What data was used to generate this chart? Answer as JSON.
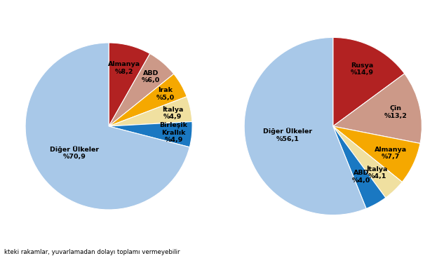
{
  "left_pie": {
    "values": [
      8.2,
      6.0,
      5.0,
      4.9,
      4.9,
      70.9
    ],
    "colors": [
      "#b22222",
      "#cc9988",
      "#f5a800",
      "#f0e0a0",
      "#1a78c2",
      "#a8c8e8"
    ],
    "label_texts": [
      "Almanya\n%8,2",
      "ABD\n%6,0",
      "Irak\n%5,0",
      "İtalya\n%4,9",
      "Birleşik\nKrallık\n%4,9",
      "Diğer Ülkeler\n%70,9"
    ],
    "label_radii": [
      0.72,
      0.78,
      0.78,
      0.78,
      0.78,
      0.52
    ]
  },
  "right_pie": {
    "values": [
      14.9,
      13.2,
      7.7,
      4.1,
      4.0,
      56.1
    ],
    "colors": [
      "#b22222",
      "#cc9988",
      "#f5a800",
      "#f0e0a0",
      "#1a78c2",
      "#a8c8e8"
    ],
    "label_texts": [
      "Rusya\n%14,9",
      "Çin\n%13,2",
      "Almanya\n%7,7",
      "İtalya\n%4,1",
      "ABD\n%4,0",
      "Diğer Ülkeler\n%56,1"
    ],
    "label_radii": [
      0.72,
      0.72,
      0.72,
      0.72,
      0.65,
      0.52
    ]
  },
  "footnote": "kteki rakamlar, yuvarlamadan dolayı toplamı vermeyebilir",
  "background_color": "#ffffff",
  "label_fontsize": 6.8
}
